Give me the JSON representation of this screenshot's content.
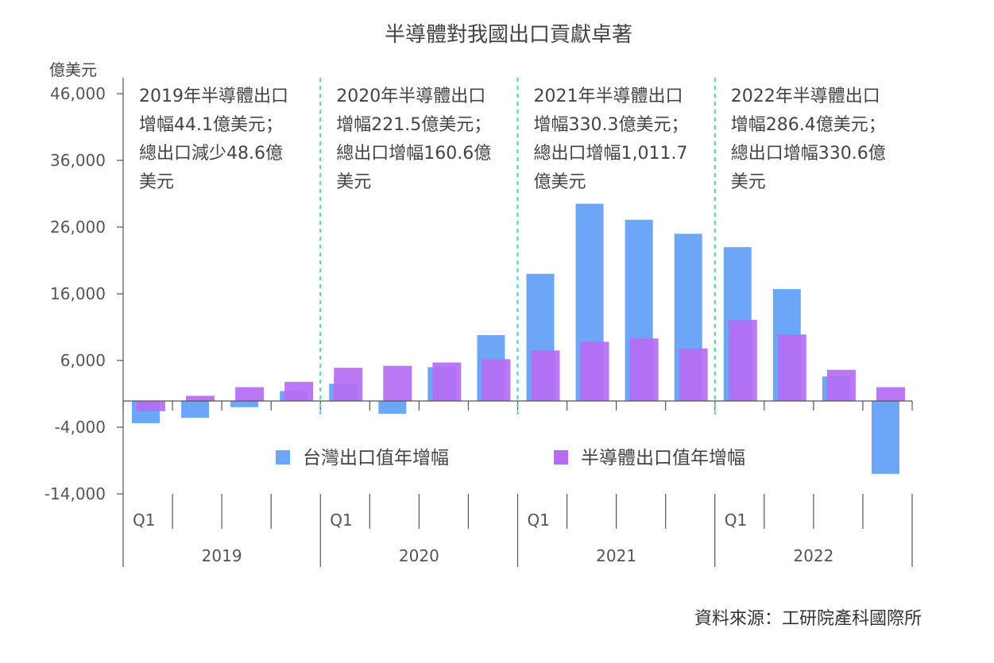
{
  "chart_data": {
    "type": "bar",
    "title": "半導體對我國出口貢獻卓著",
    "ylabel": "億美元",
    "ylim": [
      -14000,
      46000
    ],
    "yticks": [
      "46,000",
      "36,000",
      "26,000",
      "16,000",
      "6,000",
      "-4,000",
      "-14,000"
    ],
    "ytick_values": [
      46000,
      36000,
      26000,
      16000,
      6000,
      -4000,
      -14000
    ],
    "years": [
      "2019",
      "2020",
      "2021",
      "2022"
    ],
    "quarter_label": "Q1",
    "categories": [
      "2019Q1",
      "2019Q2",
      "2019Q3",
      "2019Q4",
      "2020Q1",
      "2020Q2",
      "2020Q3",
      "2020Q4",
      "2021Q1",
      "2021Q2",
      "2021Q3",
      "2021Q4",
      "2022Q1",
      "2022Q2",
      "2022Q3",
      "2022Q4"
    ],
    "series": [
      {
        "name": "台灣出口值年增幅",
        "color": "#6ea6f7",
        "values": [
          -3400,
          -2600,
          -1000,
          1400,
          2500,
          -2000,
          5000,
          9800,
          19000,
          29500,
          27100,
          25000,
          23000,
          16700,
          3600,
          -11000
        ]
      },
      {
        "name": "半導體出口值年增幅",
        "color": "#b56cf3",
        "values": [
          -1600,
          700,
          2000,
          2800,
          4900,
          5200,
          5700,
          6200,
          7500,
          8800,
          9300,
          7800,
          12100,
          9900,
          4600,
          2000
        ]
      }
    ],
    "annotations": [
      {
        "year": "2019",
        "lines": [
          "2019年半導體出口",
          "增幅44.1億美元；",
          "總出口減少48.6億",
          "美元"
        ]
      },
      {
        "year": "2020",
        "lines": [
          "2020年半導體出口",
          "增幅221.5億美元；",
          "總出口增幅160.6億",
          "美元"
        ]
      },
      {
        "year": "2021",
        "lines": [
          "2021年半導體出口",
          "增幅330.3億美元；",
          "總出口增幅1,011.7",
          "億美元"
        ]
      },
      {
        "year": "2022",
        "lines": [
          "2022年半導體出口",
          "增幅286.4億美元；",
          "總出口增幅330.6億",
          "美元"
        ]
      }
    ],
    "source": "資料來源：工研院產科國際所",
    "grid": false,
    "legend_position": "center-bottom"
  }
}
